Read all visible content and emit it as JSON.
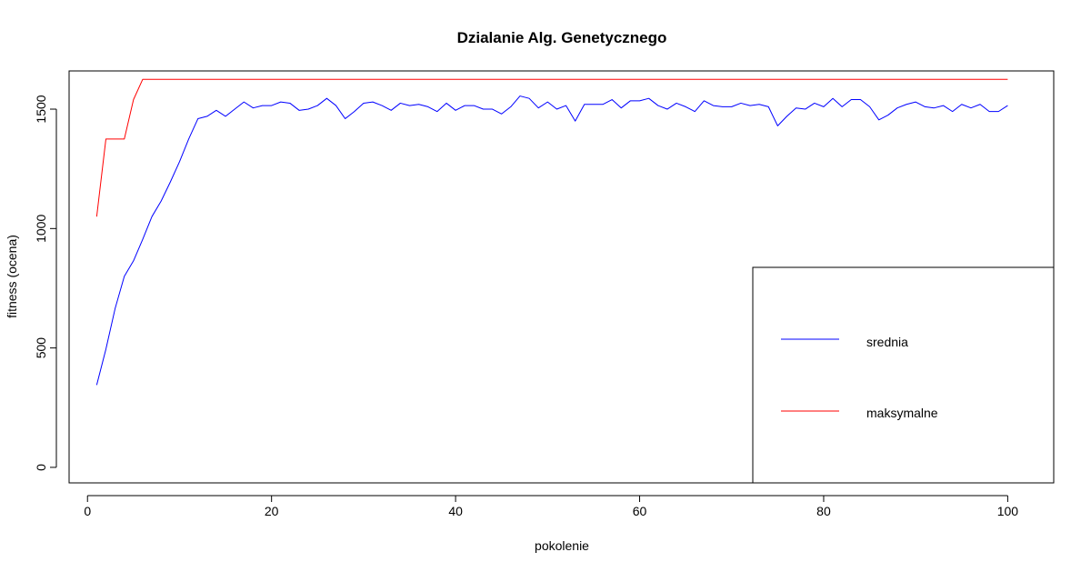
{
  "chart_data": {
    "type": "line",
    "title": "Dzialanie Alg. Genetycznego",
    "xlabel": "pokolenie",
    "ylabel": "fitness (ocena)",
    "xlim": [
      -2,
      105
    ],
    "ylim": [
      -65,
      1660
    ],
    "x_ticks": [
      0,
      20,
      40,
      60,
      80,
      100
    ],
    "y_ticks": [
      0,
      500,
      1000,
      1500
    ],
    "grid": false,
    "legend_placement": "bottom-right",
    "x": [
      1,
      2,
      3,
      4,
      5,
      6,
      7,
      8,
      9,
      10,
      11,
      12,
      13,
      14,
      15,
      16,
      17,
      18,
      19,
      20,
      21,
      22,
      23,
      24,
      25,
      26,
      27,
      28,
      29,
      30,
      31,
      32,
      33,
      34,
      35,
      36,
      37,
      38,
      39,
      40,
      41,
      42,
      43,
      44,
      45,
      46,
      47,
      48,
      49,
      50,
      51,
      52,
      53,
      54,
      55,
      56,
      57,
      58,
      59,
      60,
      61,
      62,
      63,
      64,
      65,
      66,
      67,
      68,
      69,
      70,
      71,
      72,
      73,
      74,
      75,
      76,
      77,
      78,
      79,
      80,
      81,
      82,
      83,
      84,
      85,
      86,
      87,
      88,
      89,
      90,
      91,
      92,
      93,
      94,
      95,
      96,
      97,
      98,
      99,
      100
    ],
    "series": [
      {
        "name": "srednia",
        "color": "#0000ff",
        "values": [
          345,
          495,
          665,
          800,
          865,
          955,
          1050,
          1115,
          1195,
          1280,
          1375,
          1460,
          1470,
          1495,
          1470,
          1500,
          1530,
          1505,
          1515,
          1515,
          1530,
          1525,
          1495,
          1500,
          1515,
          1545,
          1515,
          1460,
          1490,
          1525,
          1530,
          1515,
          1495,
          1525,
          1515,
          1520,
          1510,
          1490,
          1525,
          1495,
          1515,
          1515,
          1500,
          1500,
          1480,
          1510,
          1555,
          1545,
          1505,
          1530,
          1500,
          1515,
          1450,
          1520,
          1520,
          1520,
          1540,
          1505,
          1535,
          1535,
          1545,
          1515,
          1500,
          1525,
          1510,
          1490,
          1535,
          1515,
          1510,
          1510,
          1525,
          1515,
          1520,
          1510,
          1430,
          1470,
          1505,
          1500,
          1525,
          1510,
          1545,
          1510,
          1540,
          1540,
          1510,
          1455,
          1475,
          1505,
          1520,
          1530,
          1510,
          1505,
          1515,
          1490,
          1520,
          1505,
          1520,
          1490,
          1490,
          1515
        ]
      },
      {
        "name": "maksymalne",
        "color": "#ff0000",
        "values": [
          1050,
          1375,
          1375,
          1375,
          1540,
          1625,
          1625,
          1625,
          1625,
          1625,
          1625,
          1625,
          1625,
          1625,
          1625,
          1625,
          1625,
          1625,
          1625,
          1625,
          1625,
          1625,
          1625,
          1625,
          1625,
          1625,
          1625,
          1625,
          1625,
          1625,
          1625,
          1625,
          1625,
          1625,
          1625,
          1625,
          1625,
          1625,
          1625,
          1625,
          1625,
          1625,
          1625,
          1625,
          1625,
          1625,
          1625,
          1625,
          1625,
          1625,
          1625,
          1625,
          1625,
          1625,
          1625,
          1625,
          1625,
          1625,
          1625,
          1625,
          1625,
          1625,
          1625,
          1625,
          1625,
          1625,
          1625,
          1625,
          1625,
          1625,
          1625,
          1625,
          1625,
          1625,
          1625,
          1625,
          1625,
          1625,
          1625,
          1625,
          1625,
          1625,
          1625,
          1625,
          1625,
          1625,
          1625,
          1625,
          1625,
          1625,
          1625,
          1625,
          1625,
          1625,
          1625,
          1625,
          1625,
          1625,
          1625,
          1625
        ]
      }
    ]
  }
}
